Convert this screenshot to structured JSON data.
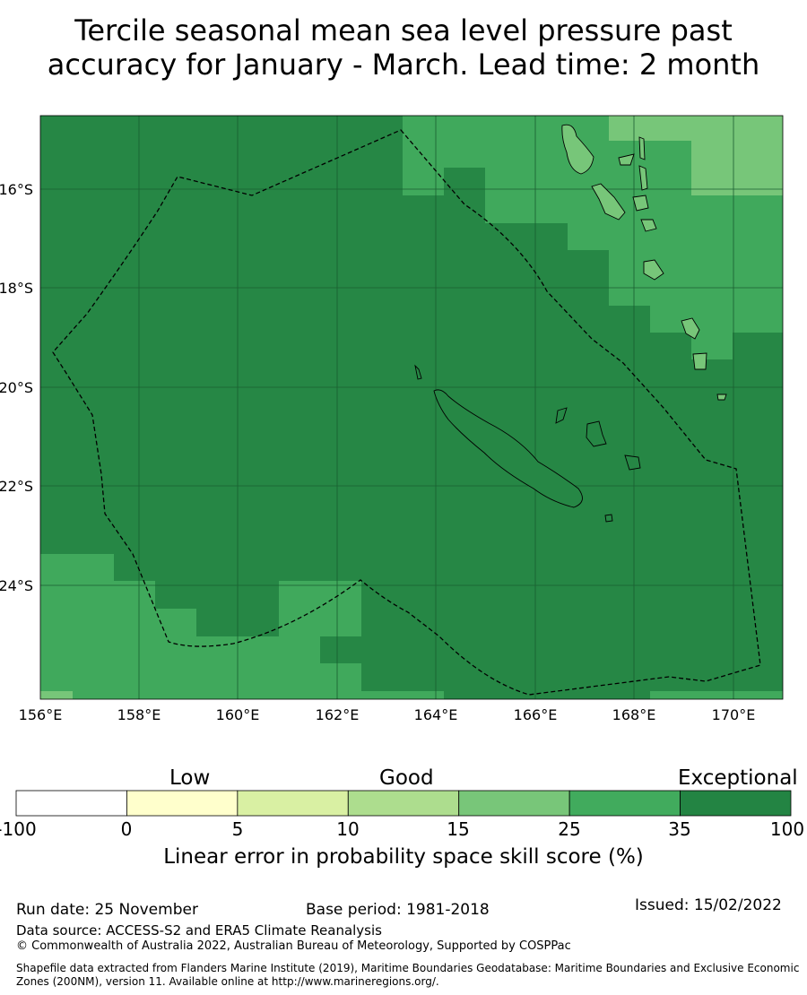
{
  "title": {
    "line1": "Tercile seasonal mean sea level pressure past",
    "line2": "accuracy for January - March. Lead time: 2 month"
  },
  "map": {
    "lat_labels": [
      "16°S",
      "18°S",
      "20°S",
      "22°S",
      "24°S"
    ],
    "lon_labels": [
      "156°E",
      "158°E",
      "160°E",
      "162°E",
      "164°E",
      "166°E",
      "168°E",
      "170°E"
    ],
    "skill_colors": {
      "exceptional": "#268745",
      "good_high": "#40a95c",
      "good_mid": "#77c679"
    }
  },
  "colorbar": {
    "categories": [
      "Low",
      "Good",
      "Exceptional"
    ],
    "ticks": [
      "-100",
      "0",
      "5",
      "10",
      "15",
      "25",
      "35",
      "100"
    ],
    "colors": [
      "#ffffff",
      "#ffffcc",
      "#d9f0a3",
      "#addd8e",
      "#78c679",
      "#41ab5d",
      "#238443"
    ],
    "label": "Linear error in probability space skill score (%)"
  },
  "footer": {
    "run_date": "Run date: 25 November",
    "base_period": "Base period: 1981-2018",
    "issued": "Issued: 15/02/2022",
    "data_source": "Data source: ACCESS-S2 and ERA5 Climate Reanalysis",
    "copyright": "© Commonwealth of Australia 2022, Australian Bureau of Meteorology, Supported by COSPPac",
    "shapefile_1": "Shapefile data extracted from Flanders Marine Institute (2019), Maritime Boundaries Geodatabase: Maritime Boundaries and Exclusive Economic",
    "shapefile_2": "Zones (200NM), version 11. Available online at http://www.marineregions.org/."
  }
}
